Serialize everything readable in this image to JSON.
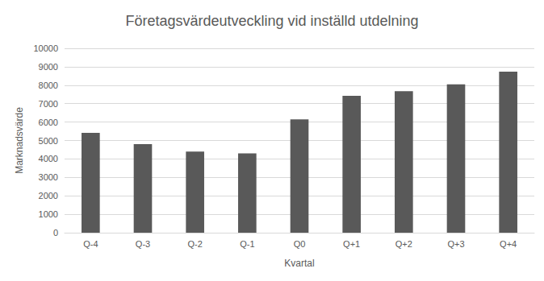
{
  "chart_data": {
    "type": "bar",
    "title": "Företagsvärdeutveckling vid inställd utdelning",
    "x_label": "Kvartal",
    "y_label": "Marknadsvärde",
    "categories": [
      "Q-4",
      "Q-3",
      "Q-2",
      "Q-1",
      "Q0",
      "Q+1",
      "Q+2",
      "Q+3",
      "Q+4"
    ],
    "values": [
      5420,
      4800,
      4400,
      4300,
      6150,
      7420,
      7680,
      8050,
      8730
    ],
    "color": "#595959",
    "ylim": [
      0,
      10000
    ],
    "yticks": [
      0,
      1000,
      2000,
      3000,
      4000,
      5000,
      6000,
      7000,
      8000,
      9000,
      10000
    ],
    "grid": true
  }
}
